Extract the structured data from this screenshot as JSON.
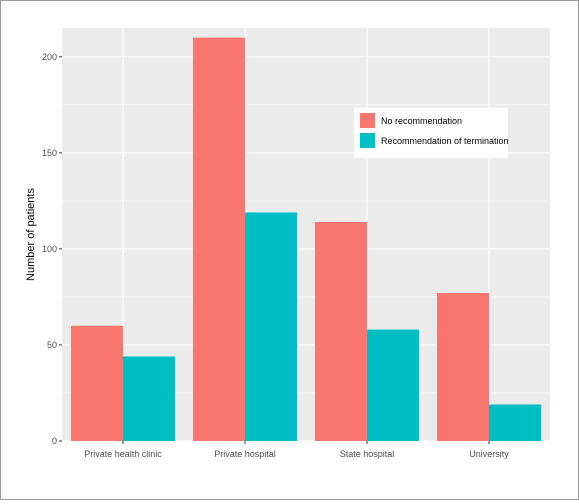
{
  "chart_data": {
    "type": "bar",
    "title": "",
    "xlabel": "",
    "ylabel": "Number of patients",
    "ylim": [
      0,
      215
    ],
    "yticks": [
      0,
      50,
      100,
      150,
      200
    ],
    "categories": [
      "Private health clinic",
      "Private hospital",
      "State hospital",
      "University"
    ],
    "series": [
      {
        "name": "No recommendation",
        "color": "#f8766d",
        "values": [
          60,
          210,
          114,
          77
        ]
      },
      {
        "name": "Recommendation of termination",
        "color": "#00bfc4",
        "values": [
          44,
          119,
          58,
          19
        ]
      }
    ],
    "grid": true,
    "panel_background": "#ebebeb",
    "grid_color": "#ffffff",
    "legend_position": "inside-top-right"
  }
}
